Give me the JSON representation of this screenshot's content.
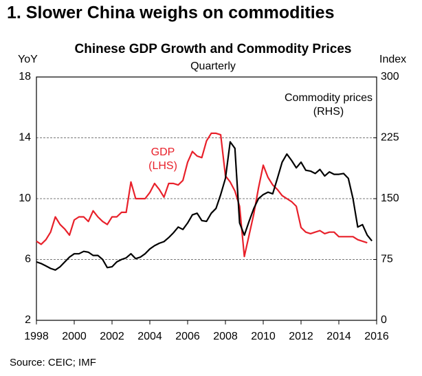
{
  "chart_data": {
    "type": "line",
    "header": "1. Slower China weighs on commodities",
    "title": "Chinese GDP Growth and Commodity Prices",
    "subtitle": "Quarterly",
    "ylabel": "YoY",
    "y2label": "Index",
    "source": "Source: CEIC; IMF",
    "annotations": [
      {
        "lines": [
          "GDP",
          "(LHS)"
        ],
        "color": "#e8202a"
      },
      {
        "lines": [
          "Commodity prices",
          "(RHS)"
        ],
        "color": "#000000"
      }
    ],
    "xlim": [
      1998,
      2016
    ],
    "xticks": [
      1998,
      2000,
      2002,
      2004,
      2006,
      2008,
      2010,
      2012,
      2014,
      2016
    ],
    "ylim": [
      2,
      18
    ],
    "yticks": [
      2,
      6,
      10,
      14,
      18
    ],
    "y2lim": [
      0,
      300
    ],
    "y2ticks": [
      0,
      75,
      150,
      225,
      300
    ],
    "grid": true,
    "x": [
      1998,
      1998.25,
      1998.5,
      1998.75,
      1999,
      1999.25,
      1999.5,
      1999.75,
      2000,
      2000.25,
      2000.5,
      2000.75,
      2001,
      2001.25,
      2001.5,
      2001.75,
      2002,
      2002.25,
      2002.5,
      2002.75,
      2003,
      2003.25,
      2003.5,
      2003.75,
      2004,
      2004.25,
      2004.5,
      2004.75,
      2005,
      2005.25,
      2005.5,
      2005.75,
      2006,
      2006.25,
      2006.5,
      2006.75,
      2007,
      2007.25,
      2007.5,
      2007.75,
      2008,
      2008.25,
      2008.5,
      2008.75,
      2009,
      2009.25,
      2009.5,
      2009.75,
      2010,
      2010.25,
      2010.5,
      2010.75,
      2011,
      2011.25,
      2011.5,
      2011.75,
      2012,
      2012.25,
      2012.5,
      2012.75,
      2013,
      2013.25,
      2013.5,
      2013.75,
      2014,
      2014.25,
      2014.5,
      2014.75,
      2015,
      2015.25,
      2015.5,
      2015.75
    ],
    "series": [
      {
        "name": "GDP",
        "color": "#e8202a",
        "axis": "y",
        "values": [
          7.2,
          7.0,
          7.3,
          7.8,
          8.8,
          8.3,
          8.0,
          7.6,
          8.6,
          8.8,
          8.8,
          8.5,
          9.2,
          8.8,
          8.5,
          8.3,
          8.8,
          8.8,
          9.1,
          9.1,
          11.1,
          10.0,
          10.0,
          10.0,
          10.4,
          11.0,
          10.6,
          10.1,
          11.0,
          11.0,
          10.9,
          11.2,
          12.4,
          13.1,
          12.8,
          12.7,
          13.8,
          14.3,
          14.3,
          14.2,
          11.5,
          11.1,
          10.5,
          9.5,
          6.2,
          7.6,
          9.0,
          10.7,
          12.2,
          11.4,
          10.9,
          10.6,
          10.2,
          10.0,
          9.8,
          9.5,
          8.1,
          7.8,
          7.7,
          7.8,
          7.9,
          7.7,
          7.8,
          7.8,
          7.5,
          7.5,
          7.5,
          7.5,
          7.3,
          7.2,
          7.1,
          null
        ]
      },
      {
        "name": "Commodity prices",
        "color": "#000000",
        "axis": "y2",
        "values": [
          72,
          70,
          67,
          64,
          62,
          66,
          72,
          78,
          82,
          82,
          85,
          84,
          80,
          80,
          75,
          65,
          66,
          72,
          75,
          77,
          82,
          76,
          78,
          82,
          88,
          92,
          95,
          97,
          102,
          108,
          115,
          112,
          120,
          130,
          132,
          123,
          122,
          132,
          138,
          155,
          175,
          220,
          212,
          120,
          105,
          122,
          138,
          150,
          155,
          158,
          156,
          175,
          195,
          205,
          197,
          188,
          195,
          185,
          184,
          181,
          186,
          178,
          183,
          180,
          180,
          181,
          175,
          150,
          115,
          118,
          105,
          98
        ]
      }
    ]
  }
}
